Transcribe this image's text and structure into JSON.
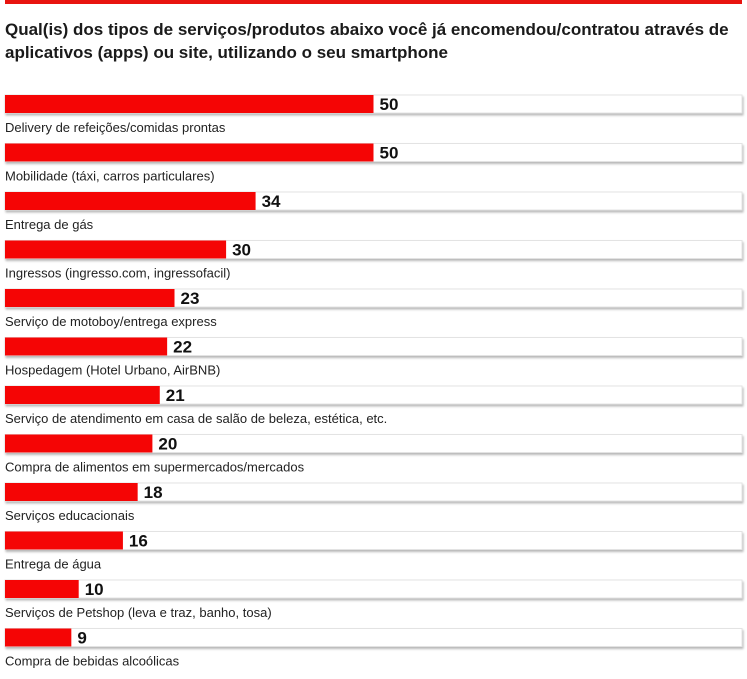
{
  "chart_data": {
    "type": "bar",
    "orientation": "horizontal",
    "title": "Qual(is) dos tipos de serviços/produtos abaixo você já encomendou/contratou através de aplicativos (apps) ou site, utilizando o seu smartphone",
    "categories": [
      "Delivery de refeições/comidas prontas",
      "Mobilidade (táxi, carros particulares)",
      "Entrega de gás",
      "Ingressos (ingresso.com, ingressofacil)",
      "Serviço de motoboy/entrega express",
      "Hospedagem (Hotel Urbano, AirBNB)",
      "Serviço de atendimento em casa de salão de beleza, estética, etc.",
      "Compra de alimentos em supermercados/mercados",
      "Serviços educacionais",
      "Entrega de água",
      "Serviços de Petshop (leva e traz, banho, tosa)",
      "Compra de bebidas alcoólicas"
    ],
    "values": [
      50,
      50,
      34,
      30,
      23,
      22,
      21,
      20,
      18,
      16,
      10,
      9
    ],
    "xlim": [
      0,
      100
    ],
    "grid": false,
    "legend": "none",
    "colors": {
      "bar": "#f50505",
      "accent_rule": "#e8140f"
    }
  }
}
